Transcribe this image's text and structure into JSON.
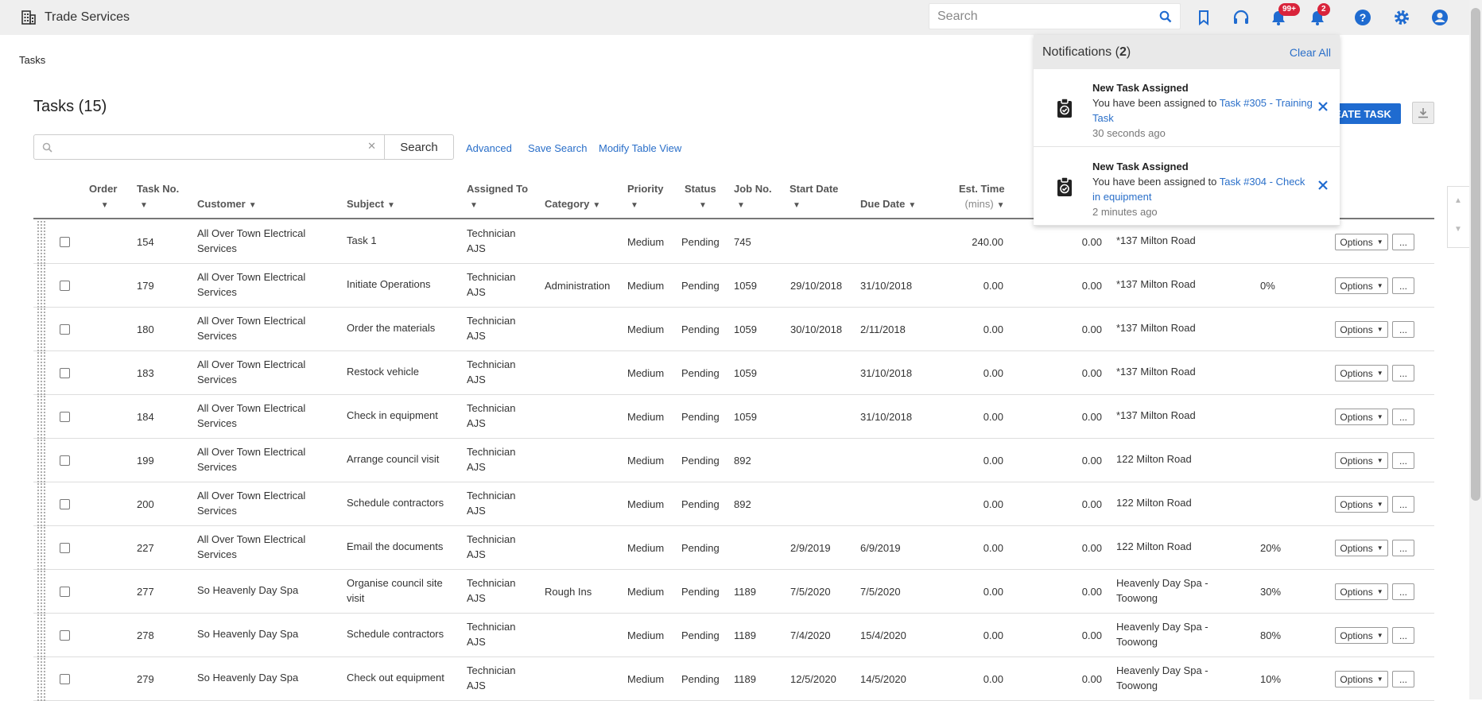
{
  "app": {
    "title": "Trade Services"
  },
  "header": {
    "search_placeholder": "Search",
    "notifications_badge": "99+",
    "alerts_badge": "2"
  },
  "breadcrumb": "Tasks",
  "page": {
    "title": "Tasks (15)"
  },
  "toolbar": {
    "search_button": "Search",
    "advanced": "Advanced",
    "save_search": "Save Search",
    "modify_view": "Modify Table View",
    "create_task": "EATE TASK"
  },
  "columns": {
    "order": "Order",
    "task_no": "Task No.",
    "customer": "Customer",
    "subject": "Subject",
    "assigned_to": "Assigned To",
    "category": "Category",
    "priority": "Priority",
    "status": "Status",
    "job_no": "Job No.",
    "start_date": "Start Date",
    "due_date": "Due Date",
    "est_time": "Est. Time",
    "est_time_unit": "(mins)"
  },
  "options_label": "Options",
  "more_label": "...",
  "rows": [
    {
      "task_no": "154",
      "customer": [
        "All Over Town Electrical",
        "Services"
      ],
      "subject": [
        "Task 1",
        ""
      ],
      "assigned": [
        "Technician",
        "AJS"
      ],
      "category": "",
      "priority": "Medium",
      "status": "Pending",
      "job": "745",
      "start": "",
      "due": "",
      "est": "240.00",
      "time": "0.00",
      "address": [
        "*137 Milton Road",
        ""
      ],
      "progress": ""
    },
    {
      "task_no": "179",
      "customer": [
        "All Over Town Electrical",
        "Services"
      ],
      "subject": [
        "Initiate Operations",
        ""
      ],
      "assigned": [
        "Technician",
        "AJS"
      ],
      "category": "Administration",
      "priority": "Medium",
      "status": "Pending",
      "job": "1059",
      "start": "29/10/2018",
      "due": "31/10/2018",
      "est": "0.00",
      "time": "0.00",
      "address": [
        "*137 Milton Road",
        ""
      ],
      "progress": "0%"
    },
    {
      "task_no": "180",
      "customer": [
        "All Over Town Electrical",
        "Services"
      ],
      "subject": [
        "Order the materials",
        ""
      ],
      "assigned": [
        "Technician",
        "AJS"
      ],
      "category": "",
      "priority": "Medium",
      "status": "Pending",
      "job": "1059",
      "start": "30/10/2018",
      "due": "2/11/2018",
      "est": "0.00",
      "time": "0.00",
      "address": [
        "*137 Milton Road",
        ""
      ],
      "progress": ""
    },
    {
      "task_no": "183",
      "customer": [
        "All Over Town Electrical",
        "Services"
      ],
      "subject": [
        "Restock vehicle",
        ""
      ],
      "assigned": [
        "Technician",
        "AJS"
      ],
      "category": "",
      "priority": "Medium",
      "status": "Pending",
      "job": "1059",
      "start": "",
      "due": "31/10/2018",
      "est": "0.00",
      "time": "0.00",
      "address": [
        "*137 Milton Road",
        ""
      ],
      "progress": ""
    },
    {
      "task_no": "184",
      "customer": [
        "All Over Town Electrical",
        "Services"
      ],
      "subject": [
        "Check in equipment",
        ""
      ],
      "assigned": [
        "Technician",
        "AJS"
      ],
      "category": "",
      "priority": "Medium",
      "status": "Pending",
      "job": "1059",
      "start": "",
      "due": "31/10/2018",
      "est": "0.00",
      "time": "0.00",
      "address": [
        "*137 Milton Road",
        ""
      ],
      "progress": ""
    },
    {
      "task_no": "199",
      "customer": [
        "All Over Town Electrical",
        "Services"
      ],
      "subject": [
        "Arrange council visit",
        ""
      ],
      "assigned": [
        "Technician",
        "AJS"
      ],
      "category": "",
      "priority": "Medium",
      "status": "Pending",
      "job": "892",
      "start": "",
      "due": "",
      "est": "0.00",
      "time": "0.00",
      "address": [
        "122 Milton Road",
        ""
      ],
      "progress": ""
    },
    {
      "task_no": "200",
      "customer": [
        "All Over Town Electrical",
        "Services"
      ],
      "subject": [
        "Schedule contractors",
        ""
      ],
      "assigned": [
        "Technician",
        "AJS"
      ],
      "category": "",
      "priority": "Medium",
      "status": "Pending",
      "job": "892",
      "start": "",
      "due": "",
      "est": "0.00",
      "time": "0.00",
      "address": [
        "122 Milton Road",
        ""
      ],
      "progress": ""
    },
    {
      "task_no": "227",
      "customer": [
        "All Over Town Electrical",
        "Services"
      ],
      "subject": [
        "Email the documents",
        ""
      ],
      "assigned": [
        "Technician",
        "AJS"
      ],
      "category": "",
      "priority": "Medium",
      "status": "Pending",
      "job": "",
      "start": "2/9/2019",
      "due": "6/9/2019",
      "est": "0.00",
      "time": "0.00",
      "address": [
        "122 Milton Road",
        ""
      ],
      "progress": "20%"
    },
    {
      "task_no": "277",
      "customer": [
        "So Heavenly Day Spa",
        ""
      ],
      "subject": [
        "Organise council site",
        "visit"
      ],
      "assigned": [
        "Technician",
        "AJS"
      ],
      "category": "Rough Ins",
      "priority": "Medium",
      "status": "Pending",
      "job": "1189",
      "start": "7/5/2020",
      "due": "7/5/2020",
      "est": "0.00",
      "time": "0.00",
      "address": [
        "Heavenly Day Spa -",
        "Toowong"
      ],
      "progress": "30%"
    },
    {
      "task_no": "278",
      "customer": [
        "So Heavenly Day Spa",
        ""
      ],
      "subject": [
        "Schedule contractors",
        ""
      ],
      "assigned": [
        "Technician",
        "AJS"
      ],
      "category": "",
      "priority": "Medium",
      "status": "Pending",
      "job": "1189",
      "start": "7/4/2020",
      "due": "15/4/2020",
      "est": "0.00",
      "time": "0.00",
      "address": [
        "Heavenly Day Spa -",
        "Toowong"
      ],
      "progress": "80%"
    },
    {
      "task_no": "279",
      "customer": [
        "So Heavenly Day Spa",
        ""
      ],
      "subject": [
        "Check out equipment",
        ""
      ],
      "assigned": [
        "Technician",
        "AJS"
      ],
      "category": "",
      "priority": "Medium",
      "status": "Pending",
      "job": "1189",
      "start": "12/5/2020",
      "due": "14/5/2020",
      "est": "0.00",
      "time": "0.00",
      "address": [
        "Heavenly Day Spa -",
        "Toowong"
      ],
      "progress": "10%"
    }
  ],
  "notifications": {
    "title": "Notifications",
    "count": "2",
    "clear_all": "Clear All",
    "items": [
      {
        "title": "New Task Assigned",
        "text": "You have been assigned to ",
        "link": "Task #305 - Training Task",
        "time": "30 seconds ago"
      },
      {
        "title": "New Task Assigned",
        "text": "You have been assigned to ",
        "link": "Task #304 - Check in equipment",
        "time": "2 minutes ago"
      }
    ]
  },
  "colors": {
    "accent": "#1f6bd0",
    "link": "#2a6fc9",
    "badge": "#d9243b",
    "header_bg": "#efefef"
  }
}
